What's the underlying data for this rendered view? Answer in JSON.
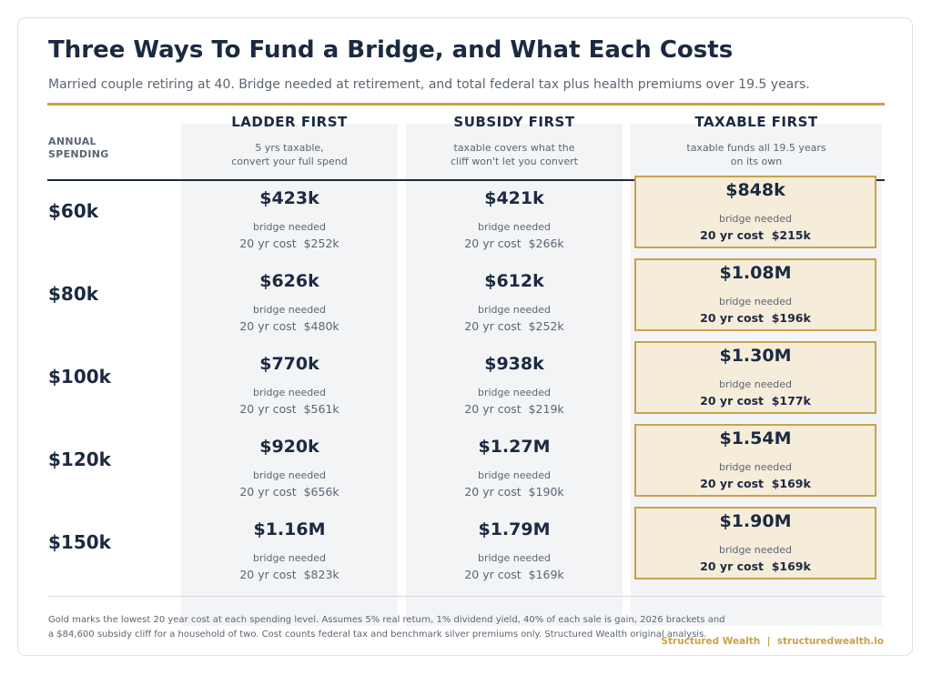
{
  "title": "Three Ways To Fund a Bridge, and What Each Costs",
  "subtitle": "Married couple retiring at 40. Bridge needed at retirement, and total federal tax plus health premiums over 19.5 years.",
  "colors": {
    "accent_gold": "#c9a24a",
    "highlight_fill": "#f6ecda",
    "navy": "#1b2a41",
    "column_bg": "#f3f4f6"
  },
  "annual_spending_label_1": "ANNUAL",
  "annual_spending_label_2": "SPENDING",
  "columns": [
    {
      "title": "LADDER FIRST",
      "desc_1": "5 yrs taxable,",
      "desc_2": "convert your full spend"
    },
    {
      "title": "SUBSIDY FIRST",
      "desc_1": "taxable covers what the",
      "desc_2": "cliff won't let you convert"
    },
    {
      "title": "TAXABLE FIRST",
      "desc_1": "taxable funds all 19.5 years",
      "desc_2": "on its own"
    }
  ],
  "bridge_label": "bridge needed",
  "rows": [
    {
      "spending": "$60k",
      "cells": [
        {
          "bridge": "$423k",
          "cost": "20 yr cost  $252k"
        },
        {
          "bridge": "$421k",
          "cost": "20 yr cost  $266k"
        },
        {
          "bridge": "$848k",
          "cost": "20 yr cost  $215k"
        }
      ]
    },
    {
      "spending": "$80k",
      "cells": [
        {
          "bridge": "$626k",
          "cost": "20 yr cost  $480k"
        },
        {
          "bridge": "$612k",
          "cost": "20 yr cost  $252k"
        },
        {
          "bridge": "$1.08M",
          "cost": "20 yr cost  $196k"
        }
      ]
    },
    {
      "spending": "$100k",
      "cells": [
        {
          "bridge": "$770k",
          "cost": "20 yr cost  $561k"
        },
        {
          "bridge": "$938k",
          "cost": "20 yr cost  $219k"
        },
        {
          "bridge": "$1.30M",
          "cost": "20 yr cost  $177k"
        }
      ]
    },
    {
      "spending": "$120k",
      "cells": [
        {
          "bridge": "$920k",
          "cost": "20 yr cost  $656k"
        },
        {
          "bridge": "$1.27M",
          "cost": "20 yr cost  $190k"
        },
        {
          "bridge": "$1.54M",
          "cost": "20 yr cost  $169k"
        }
      ]
    },
    {
      "spending": "$150k",
      "cells": [
        {
          "bridge": "$1.16M",
          "cost": "20 yr cost  $823k"
        },
        {
          "bridge": "$1.79M",
          "cost": "20 yr cost  $169k"
        },
        {
          "bridge": "$1.90M",
          "cost": "20 yr cost  $169k"
        }
      ]
    }
  ],
  "footnote_line_1": "Gold marks the lowest 20 year cost at each spending level. Assumes 5% real return, 1% dividend yield, 40% of each sale is gain, 2026 brackets and",
  "footnote_line_2": "a $84,600 subsidy cliff for a household of two. Cost counts federal tax and benchmark silver premiums only. Structured Wealth original analysis.",
  "brand": "Structured Wealth  |  structuredwealth.io"
}
